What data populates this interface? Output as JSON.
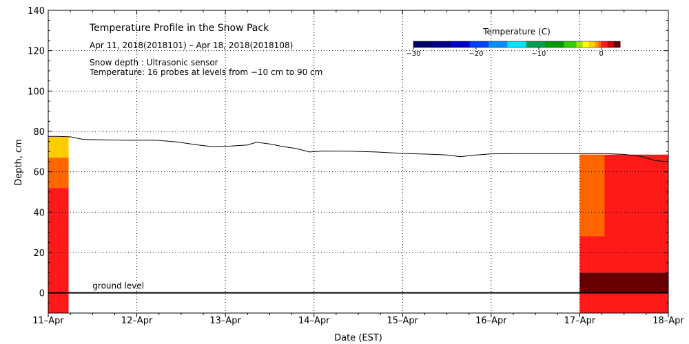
{
  "chart_data": {
    "type": "heatmap",
    "title": "Temperature Profile in the Snow Pack",
    "date_range": "Apr 11, 2018(2018101) – Apr 18, 2018(2018108)",
    "info_line1": "Snow depth : Ultrasonic sensor",
    "info_line2": "Temperature: 16 probes at levels from −10 cm to 90 cm",
    "xlabel": "Date (EST)",
    "ylabel": "Depth, cm",
    "xlim": [
      0,
      7
    ],
    "ylim": [
      -10,
      140
    ],
    "x_ticks": [
      {
        "value": 0,
        "label": "11–Apr"
      },
      {
        "value": 1,
        "label": "12–Apr"
      },
      {
        "value": 2,
        "label": "13–Apr"
      },
      {
        "value": 3,
        "label": "14–Apr"
      },
      {
        "value": 4,
        "label": "15–Apr"
      },
      {
        "value": 5,
        "label": "16–Apr"
      },
      {
        "value": 6,
        "label": "17–Apr"
      },
      {
        "value": 7,
        "label": "18–Apr"
      }
    ],
    "y_ticks": [
      0,
      20,
      40,
      60,
      80,
      100,
      120,
      140
    ],
    "grid": "dotted",
    "ground_label": "ground level",
    "ground_level": 0,
    "colorbar": {
      "title": "Temperature (C)",
      "tick_labels": [
        {
          "value": -30,
          "label": "−30"
        },
        {
          "value": -20,
          "label": "−20"
        },
        {
          "value": -10,
          "label": "−10"
        },
        {
          "value": 0,
          "label": "0"
        }
      ],
      "range": [
        -30,
        3
      ],
      "bins": [
        {
          "from": -30,
          "to": -27,
          "color": "#000066"
        },
        {
          "from": -27,
          "to": -24,
          "color": "#00008b"
        },
        {
          "from": -24,
          "to": -21,
          "color": "#0000cd"
        },
        {
          "from": -21,
          "to": -18,
          "color": "#0040ff"
        },
        {
          "from": -18,
          "to": -15,
          "color": "#0090ff"
        },
        {
          "from": -15,
          "to": -12,
          "color": "#00e5ff"
        },
        {
          "from": -12,
          "to": -9,
          "color": "#00a050"
        },
        {
          "from": -9,
          "to": -6,
          "color": "#009900"
        },
        {
          "from": -6,
          "to": -4,
          "color": "#33cc00"
        },
        {
          "from": -4,
          "to": -3,
          "color": "#99e600"
        },
        {
          "from": -3,
          "to": -2,
          "color": "#ffff00"
        },
        {
          "from": -2,
          "to": -1,
          "color": "#ffcc00"
        },
        {
          "from": -1,
          "to": -0.5,
          "color": "#ff9900"
        },
        {
          "from": -0.5,
          "to": 0,
          "color": "#ff6600"
        },
        {
          "from": 0,
          "to": 1,
          "color": "#ff1a1a"
        },
        {
          "from": 1,
          "to": 2,
          "color": "#cc0000"
        },
        {
          "from": 2,
          "to": 3,
          "color": "#660000"
        }
      ]
    },
    "snow_depth": {
      "x": [
        0,
        0.1,
        0.25,
        0.4,
        0.6,
        0.9,
        1.2,
        1.45,
        1.7,
        1.85,
        2.05,
        2.25,
        2.35,
        2.5,
        2.65,
        2.8,
        2.95,
        3.1,
        3.4,
        3.7,
        4.0,
        4.3,
        4.5,
        4.65,
        4.8,
        5.0,
        5.3,
        5.6,
        6.0,
        6.3,
        6.5,
        6.7,
        6.85,
        7.0
      ],
      "y": [
        77.5,
        77.5,
        77.3,
        76.0,
        75.8,
        75.6,
        75.7,
        74.8,
        73.2,
        72.5,
        72.7,
        73.3,
        74.6,
        73.8,
        72.5,
        71.5,
        69.8,
        70.3,
        70.2,
        69.8,
        69.1,
        68.7,
        68.3,
        67.5,
        68.2,
        68.9,
        69.0,
        69.0,
        69.0,
        69.0,
        68.6,
        67.6,
        65.5,
        65.0
      ]
    },
    "temperature_fields": [
      {
        "x_start": 0,
        "x_end": 0.23,
        "layers": [
          {
            "depth_from": -10,
            "depth_to": 52,
            "temp_bin": "0 to 1"
          },
          {
            "depth_from": 52,
            "depth_to": 67,
            "temp_bin": "-0.5 to 0"
          },
          {
            "depth_from": 67,
            "depth_to": 77.5,
            "temp_bin": "-2 to -1"
          }
        ]
      },
      {
        "x_start": 6.0,
        "x_end": 7.0,
        "layers": [
          {
            "depth_from": -10,
            "depth_to": 10,
            "temp_bin": "0 to 1"
          },
          {
            "depth_from": 0,
            "depth_to": 10,
            "temp_bin": "2 to 3"
          },
          {
            "depth_from": 10,
            "depth_to": 68.5,
            "temp_bin": "0 to 1"
          },
          {
            "depth_from": 28,
            "depth_to": 68.5,
            "temp_bin": "-0.5 to 0",
            "x_end": 6.28
          }
        ]
      }
    ]
  }
}
